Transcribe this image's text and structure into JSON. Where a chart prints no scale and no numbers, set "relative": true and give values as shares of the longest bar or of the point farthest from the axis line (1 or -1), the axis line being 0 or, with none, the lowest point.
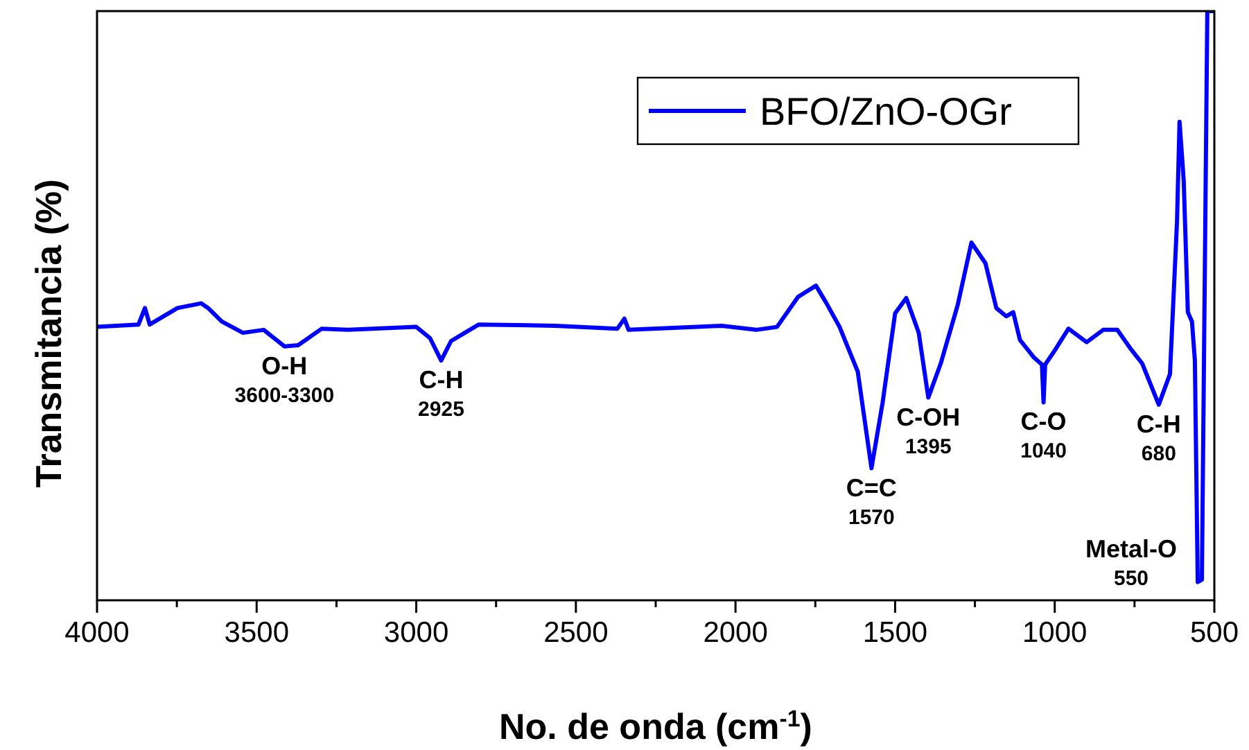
{
  "chart_data": {
    "type": "line",
    "relative": true,
    "xlabel": "No. de onda (cm$^{-1}$)",
    "ylabel": "Transmitancia (%)",
    "xlim": [
      4000,
      500
    ],
    "xticks": [
      4000,
      {
        "value": 3750,
        "label": null
      },
      3500,
      {
        "value": 3250,
        "label": null
      },
      3000,
      {
        "value": 2750,
        "label": null
      },
      2500,
      {
        "value": 2250,
        "label": null
      },
      2000,
      {
        "value": 1750,
        "label": null
      },
      1500,
      {
        "value": 1250,
        "label": null
      },
      1000,
      {
        "value": 750,
        "label": null
      },
      500
    ],
    "legend": "top right",
    "marker": "none",
    "line_style": "solid",
    "series": [
      {
        "name": "BFO/ZnO-OGr",
        "color": "#0000ff",
        "x": [
          4000,
          3870,
          3850,
          3835,
          3748,
          3674,
          3652,
          3609,
          3543,
          3478,
          3413,
          3370,
          3296,
          3217,
          3000,
          2957,
          2922,
          2891,
          2848,
          2804,
          2565,
          2370,
          2348,
          2335,
          2043,
          1935,
          1870,
          1804,
          1748,
          1717,
          1674,
          1617,
          1574,
          1539,
          1500,
          1465,
          1426,
          1396,
          1357,
          1304,
          1261,
          1217,
          1183,
          1152,
          1130,
          1109,
          1065,
          1040,
          1035,
          1030,
          1000,
          957,
          900,
          848,
          804,
          761,
          726,
          674,
          639,
          617,
          609,
          596,
          583,
          570,
          561,
          552,
          539,
          530,
          522,
          500
        ],
        "values": [
          0.464,
          0.468,
          0.496,
          0.468,
          0.496,
          0.504,
          0.496,
          0.473,
          0.454,
          0.459,
          0.431,
          0.433,
          0.461,
          0.459,
          0.464,
          0.445,
          0.407,
          0.44,
          0.454,
          0.468,
          0.466,
          0.461,
          0.478,
          0.459,
          0.466,
          0.459,
          0.464,
          0.515,
          0.534,
          0.506,
          0.464,
          0.388,
          0.224,
          0.336,
          0.487,
          0.513,
          0.454,
          0.344,
          0.402,
          0.501,
          0.607,
          0.572,
          0.496,
          0.482,
          0.489,
          0.442,
          0.412,
          0.4,
          0.336,
          0.4,
          0.424,
          0.461,
          0.438,
          0.459,
          0.459,
          0.426,
          0.402,
          0.332,
          0.384,
          0.642,
          0.812,
          0.713,
          0.489,
          0.473,
          0.407,
          0.031,
          0.035,
          0.548,
          1,
          1
        ]
      }
    ],
    "annotations": [
      {
        "text": "O-H\n3600-3300",
        "x": 3413,
        "y": 0.431
      },
      {
        "text": "C-H\n2925",
        "x": 2922,
        "y": 0.407
      },
      {
        "text": "C=C\n1570",
        "x": 1574,
        "y": 0.224
      },
      {
        "text": "C-OH\n1395",
        "x": 1396,
        "y": 0.344
      },
      {
        "text": "C-O\n1040",
        "x": 1035,
        "y": 0.336
      },
      {
        "text": "C-H\n680",
        "x": 674,
        "y": 0.332
      },
      {
        "text": "Metal-O\n550",
        "x": 552,
        "y": 0.031
      }
    ]
  }
}
